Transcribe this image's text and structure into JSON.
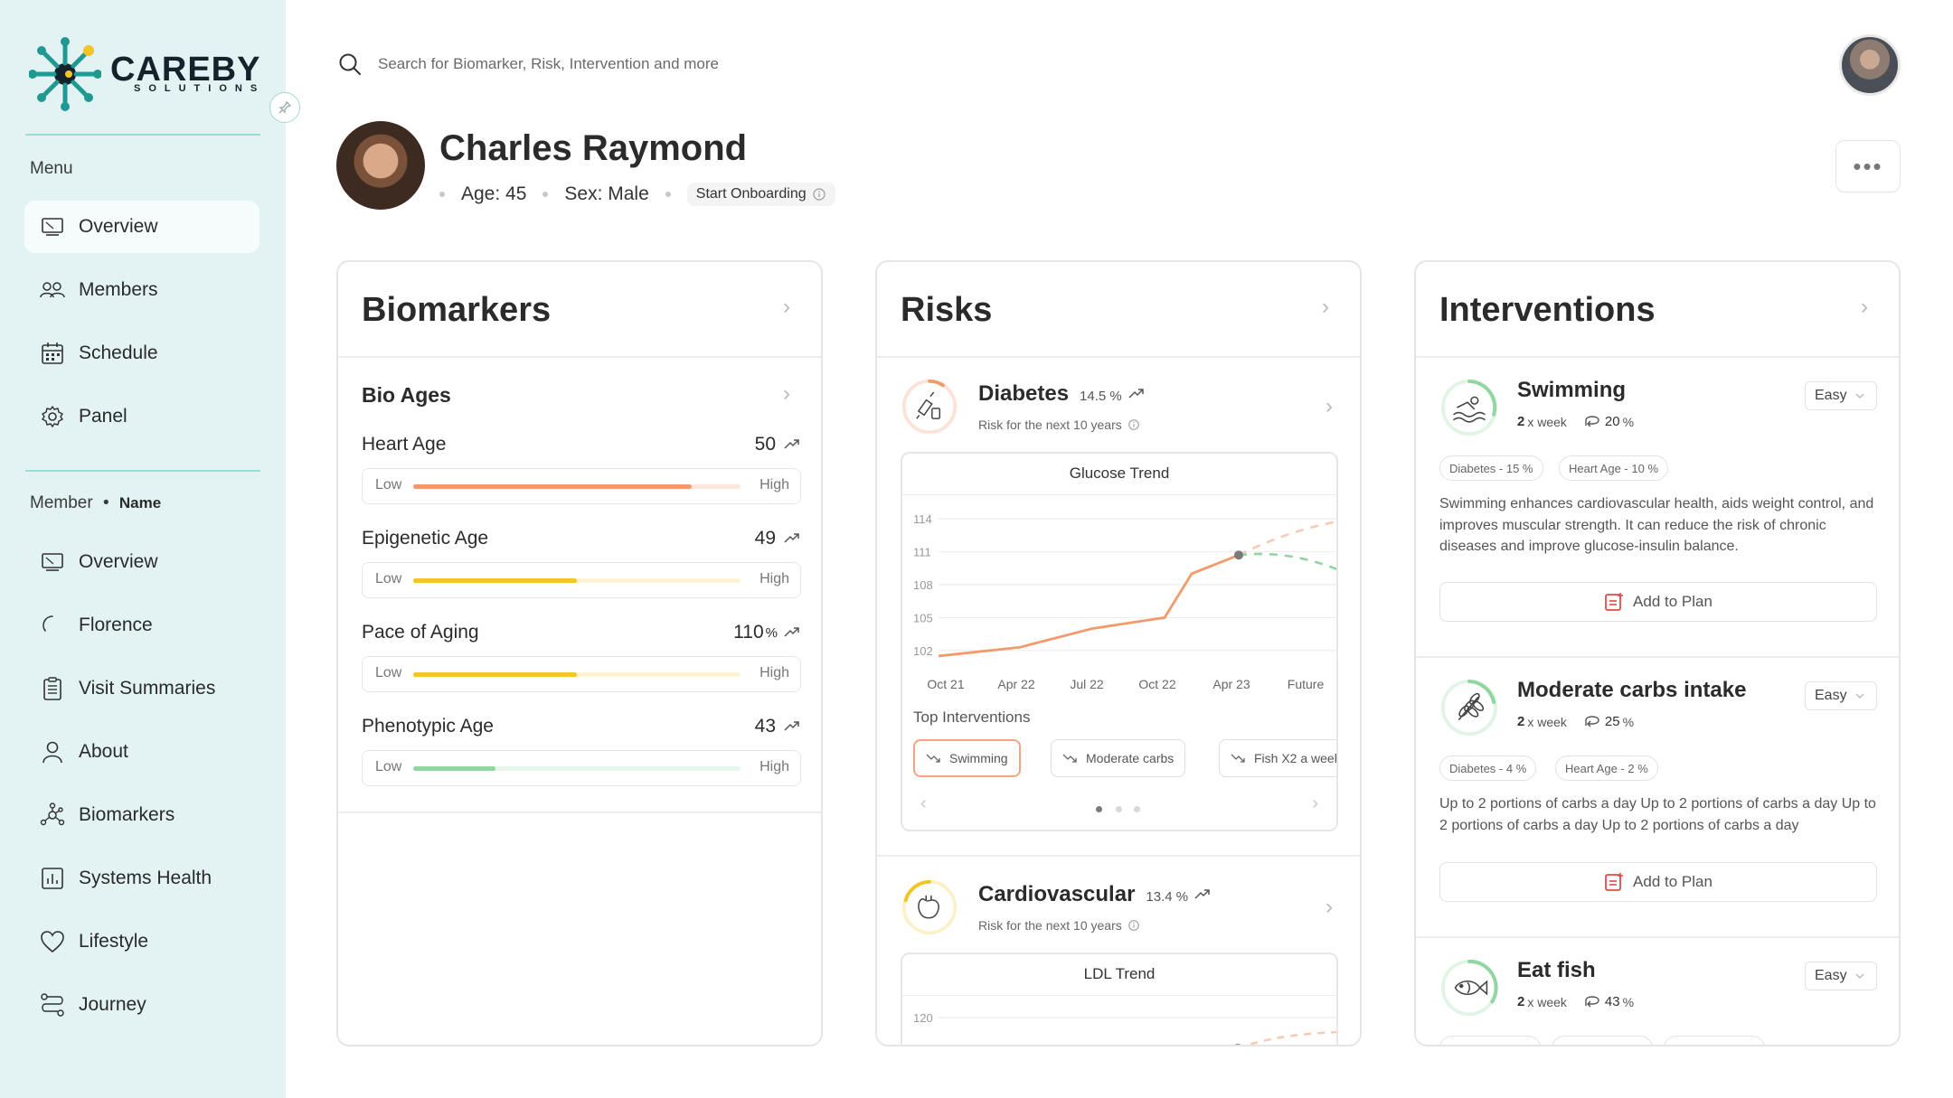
{
  "brand": {
    "name": "CAREBY",
    "tagline": "SOLUTIONS"
  },
  "sidebar": {
    "menu_label": "Menu",
    "menu_items": [
      {
        "label": "Overview",
        "icon": "monitor-icon"
      },
      {
        "label": "Members",
        "icon": "users-icon"
      },
      {
        "label": "Schedule",
        "icon": "calendar-icon"
      },
      {
        "label": "Panel",
        "icon": "gear-icon"
      }
    ],
    "member_label": "Member",
    "member_name": "Name",
    "member_items": [
      {
        "label": "Overview",
        "icon": "monitor-icon"
      },
      {
        "label": "Florence",
        "icon": "loading-icon"
      },
      {
        "label": "Visit Summaries",
        "icon": "clipboard-icon"
      },
      {
        "label": "About",
        "icon": "person-icon"
      },
      {
        "label": "Biomarkers",
        "icon": "molecule-icon"
      },
      {
        "label": "Systems Health",
        "icon": "bar-chart-icon"
      },
      {
        "label": "Lifestyle",
        "icon": "heart-icon"
      },
      {
        "label": "Journey",
        "icon": "route-icon"
      }
    ]
  },
  "search": {
    "placeholder": "Search for Biomarker, Risk, Intervention and more"
  },
  "profile": {
    "name": "Charles Raymond",
    "age": "Age: 45",
    "sex": "Sex: Male",
    "onboarding": "Start Onboarding"
  },
  "biomarkers": {
    "title": "Biomarkers",
    "subtitle": "Bio Ages",
    "low": "Low",
    "high": "High",
    "items": [
      {
        "label": "Heart Age",
        "value": "50",
        "unit": "",
        "level": 0.85,
        "color": "#f39a6c",
        "track": "#fde7dd"
      },
      {
        "label": "Epigenetic Age",
        "value": "49",
        "unit": "",
        "level": 0.5,
        "color": "#f2c425",
        "track": "#fdf3d2"
      },
      {
        "label": "Pace of Aging",
        "value": "110",
        "unit": "%",
        "level": 0.5,
        "color": "#f2c425",
        "track": "#fdf3d2"
      },
      {
        "label": "Phenotypic Age",
        "value": "43",
        "unit": "",
        "level": 0.25,
        "color": "#8fd6a0",
        "track": "#e6f6ea"
      }
    ]
  },
  "risks": {
    "title": "Risks",
    "items": [
      {
        "name": "Diabetes",
        "pct": "14.5",
        "pct_unit": "%",
        "subtext": "Risk for the next 10 years",
        "chart_title": "Glucose Trend",
        "top_interventions_label": "Top Interventions",
        "chips": [
          "Swimming",
          "Moderate carbs",
          "Fish X2 a week"
        ]
      },
      {
        "name": "Cardiovascular",
        "pct": "13.4",
        "pct_unit": "%",
        "subtext": "Risk for the next 10 years",
        "chart_title": "LDL Trend"
      }
    ]
  },
  "chart_data": [
    {
      "type": "line",
      "title": "Glucose Trend",
      "categories": [
        "Oct 21",
        "Apr 22",
        "Jul 22",
        "Oct 22",
        "Apr 23",
        "Future"
      ],
      "yticks": [
        102,
        105,
        108,
        111,
        114
      ],
      "ylim": [
        101,
        115
      ],
      "series": [
        {
          "values": [
            101.5,
            102.3,
            104.0,
            105.0,
            109.0,
            110.7
          ],
          "color": "#f39a6c"
        }
      ],
      "projections": [
        {
          "values": [
            110.7,
            113.8
          ],
          "color": "#f9c9b3"
        },
        {
          "values": [
            110.7,
            109.3
          ],
          "color": "#8fd6a0"
        }
      ],
      "grid": true
    },
    {
      "type": "line",
      "title": "LDL Trend",
      "yticks": [
        120
      ],
      "grid": true
    }
  ],
  "interventions": {
    "title": "Interventions",
    "add_label": "Add to Plan",
    "items": [
      {
        "name": "Swimming",
        "freq_num": "2",
        "freq_unit": "x week",
        "impact": "20",
        "impact_unit": "%",
        "difficulty": "Easy",
        "tags": [
          "Diabetes  - 15 %",
          "Heart Age  - 10 %"
        ],
        "desc": "Swimming enhances cardiovascular health, aids weight control, and improves muscular strength. It can reduce the risk of chronic diseases and improve glucose-insulin balance.",
        "icon": "swimmer-icon"
      },
      {
        "name": "Moderate carbs intake",
        "freq_num": "2",
        "freq_unit": "x week",
        "impact": "25",
        "impact_unit": "%",
        "difficulty": "Easy",
        "tags": [
          "Diabetes  - 4 %",
          "Heart Age  - 2 %"
        ],
        "desc": "Up to 2 portions of carbs a day Up to 2 portions of carbs a day Up to 2 portions of carbs a day Up to 2 portions of carbs a day",
        "icon": "wheat-icon"
      },
      {
        "name": "Eat fish",
        "freq_num": "2",
        "freq_unit": "x week",
        "impact": "43",
        "impact_unit": "%",
        "difficulty": "Easy",
        "icon": "fish-icon"
      }
    ]
  },
  "colors": {
    "sidebar_bg": "#e3f3f4",
    "accent_teal": "#1f9a92",
    "accent_orange": "#f39a6c",
    "accent_green": "#8fd6a0",
    "accent_red": "#e04a4a"
  }
}
